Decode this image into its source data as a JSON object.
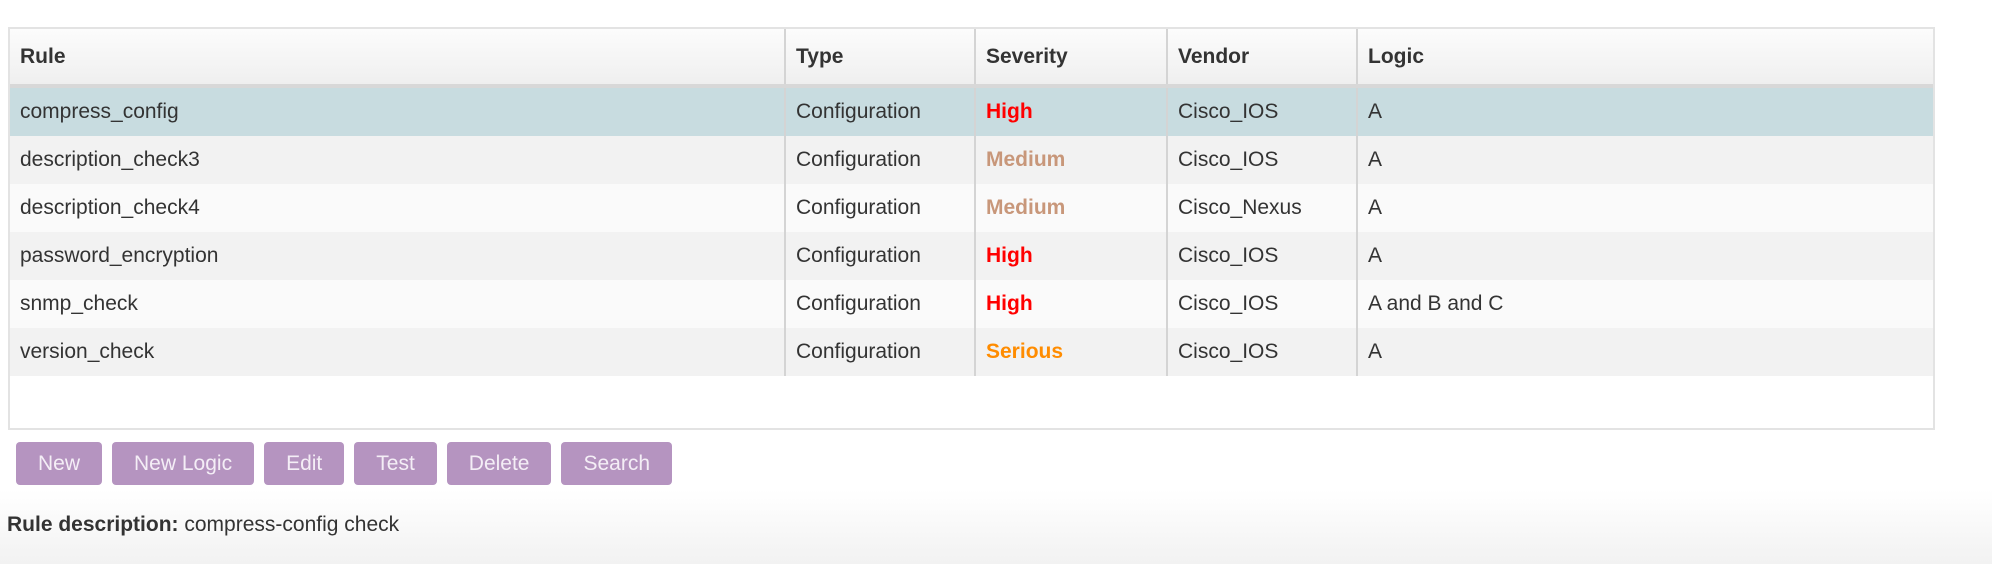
{
  "table": {
    "columns": [
      "Rule",
      "Type",
      "Severity",
      "Vendor",
      "Logic"
    ],
    "rows": [
      {
        "rule": "compress_config",
        "type": "Configuration",
        "severity": "High",
        "vendor": "Cisco_IOS",
        "logic": "A"
      },
      {
        "rule": "description_check3",
        "type": "Configuration",
        "severity": "Medium",
        "vendor": "Cisco_IOS",
        "logic": "A"
      },
      {
        "rule": "description_check4",
        "type": "Configuration",
        "severity": "Medium",
        "vendor": "Cisco_Nexus",
        "logic": "A"
      },
      {
        "rule": "password_encryption",
        "type": "Configuration",
        "severity": "High",
        "vendor": "Cisco_IOS",
        "logic": "A"
      },
      {
        "rule": "snmp_check",
        "type": "Configuration",
        "severity": "High",
        "vendor": "Cisco_IOS",
        "logic": "A and B and C"
      },
      {
        "rule": "version_check",
        "type": "Configuration",
        "severity": "Serious",
        "vendor": "Cisco_IOS",
        "logic": "A"
      }
    ],
    "selected_row": 0,
    "severity_colors": {
      "High": "#ff0000",
      "Medium": "#c8977a",
      "Serious": "#ff8c00"
    },
    "selected_color": "#c8dce0"
  },
  "buttons": [
    "New",
    "New Logic",
    "Edit",
    "Test",
    "Delete",
    "Search"
  ],
  "button_color": "#b594c0",
  "description": {
    "label": "Rule description:",
    "value": "compress-config check"
  }
}
